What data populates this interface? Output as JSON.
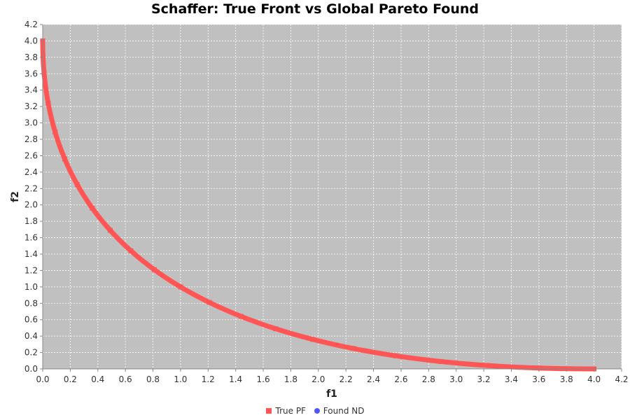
{
  "chart_data": {
    "type": "scatter",
    "title": "Schaffer: True Front vs Global Pareto Found",
    "xlabel": "f1",
    "ylabel": "f2",
    "xlim": [
      0.0,
      4.2
    ],
    "ylim": [
      0.0,
      4.2
    ],
    "x_ticks": [
      "0.0",
      "0.2",
      "0.4",
      "0.6",
      "0.8",
      "1.0",
      "1.2",
      "1.4",
      "1.6",
      "1.8",
      "2.0",
      "2.2",
      "2.4",
      "2.6",
      "2.8",
      "3.0",
      "3.2",
      "3.4",
      "3.6",
      "3.8",
      "4.0",
      "4.2"
    ],
    "y_ticks": [
      "0.0",
      "0.2",
      "0.4",
      "0.6",
      "0.8",
      "1.0",
      "1.2",
      "1.4",
      "1.6",
      "1.8",
      "2.0",
      "2.2",
      "2.4",
      "2.6",
      "2.8",
      "3.0",
      "3.2",
      "3.4",
      "3.6",
      "3.8",
      "4.0",
      "4.2"
    ],
    "grid": true,
    "legend_position": "bottom",
    "plot_background": "#c0c0c0",
    "series": [
      {
        "name": "True PF",
        "color": "#ff5555",
        "marker": "square",
        "points": [
          [
            0.0,
            4.0
          ],
          [
            0.01,
            3.61
          ],
          [
            0.04,
            3.24
          ],
          [
            0.09,
            2.89
          ],
          [
            0.16,
            2.56
          ],
          [
            0.25,
            2.25
          ],
          [
            0.36,
            1.96
          ],
          [
            0.49,
            1.69
          ],
          [
            0.64,
            1.44
          ],
          [
            0.81,
            1.21
          ],
          [
            1.0,
            1.0
          ],
          [
            1.21,
            0.81
          ],
          [
            1.44,
            0.64
          ],
          [
            1.69,
            0.49
          ],
          [
            1.96,
            0.36
          ],
          [
            2.25,
            0.25
          ],
          [
            2.56,
            0.16
          ],
          [
            2.89,
            0.09
          ],
          [
            3.24,
            0.04
          ],
          [
            3.61,
            0.01
          ],
          [
            4.0,
            0.0
          ]
        ]
      },
      {
        "name": "Found ND",
        "color": "#5555ff",
        "marker": "circle",
        "points": []
      }
    ]
  }
}
